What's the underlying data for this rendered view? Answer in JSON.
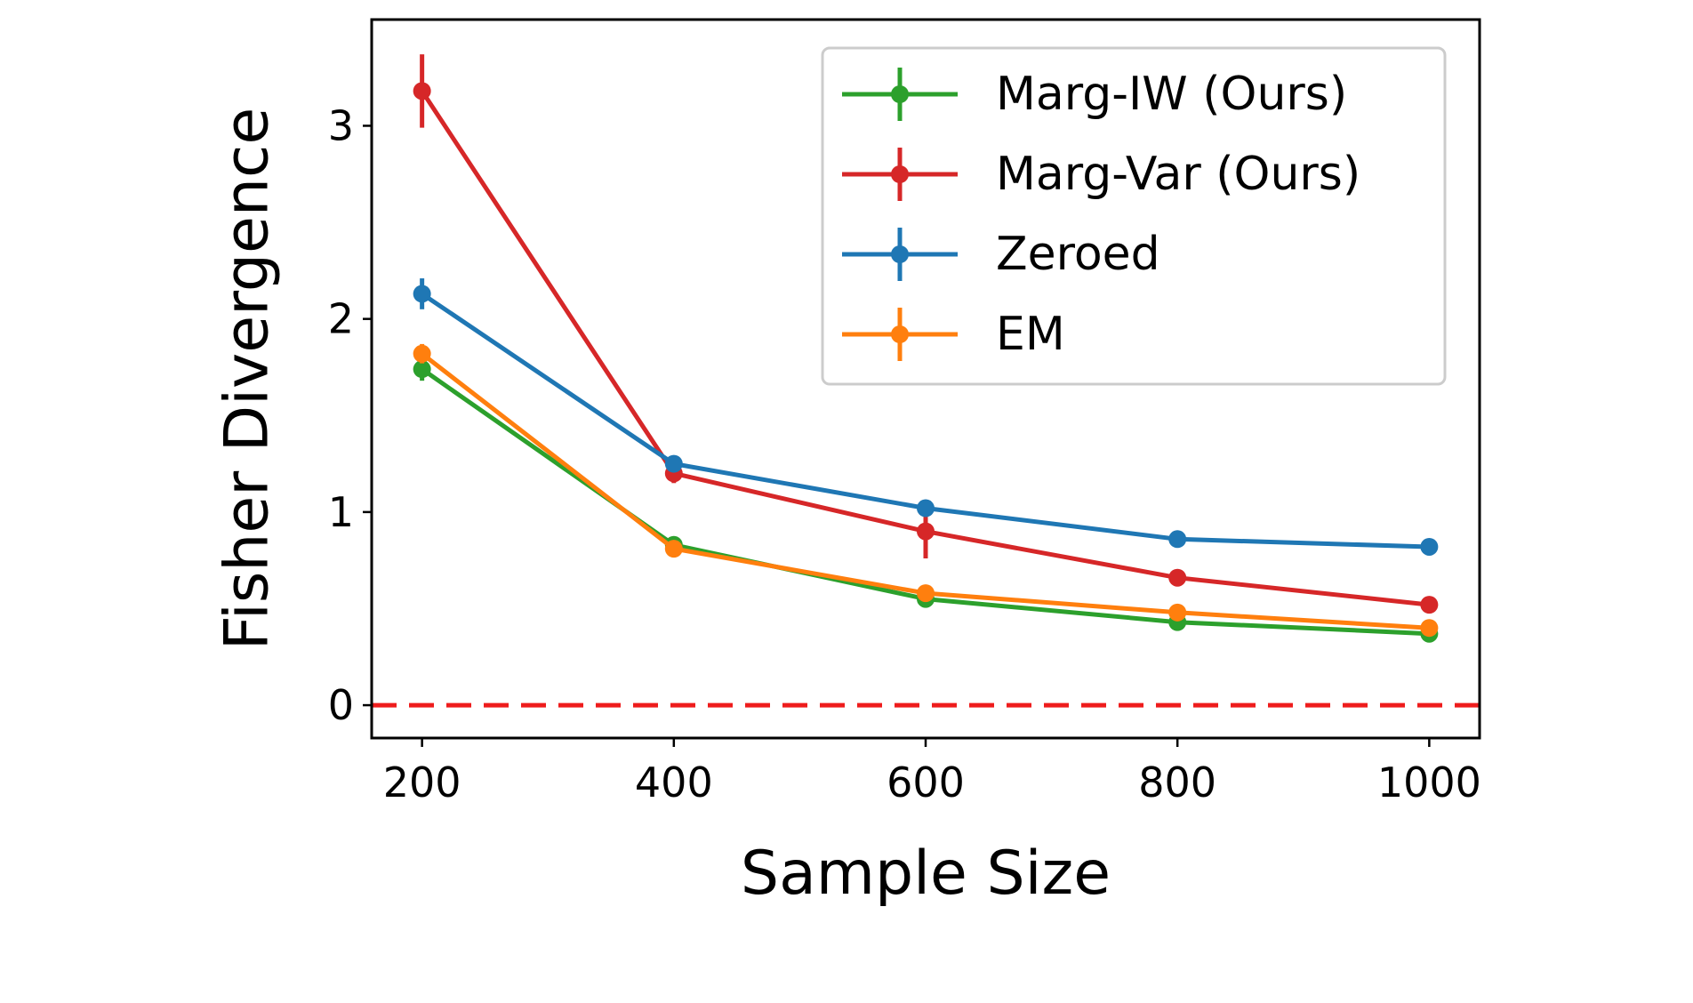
{
  "chart_data": {
    "type": "line",
    "title": "",
    "xlabel": "Sample Size",
    "ylabel": "Fisher Divergence",
    "x": [
      200,
      400,
      600,
      800,
      1000
    ],
    "xlim": [
      160,
      1040
    ],
    "ylim": [
      -0.17,
      3.55
    ],
    "xticks": [
      200,
      400,
      600,
      800,
      1000
    ],
    "yticks": [
      0,
      1,
      2,
      3
    ],
    "grid": false,
    "legend_position": "top-right",
    "reference_line": {
      "y": 0,
      "style": "dashed",
      "color": "#ee1c1c"
    },
    "series": [
      {
        "name": "Marg-IW (Ours)",
        "color": "#2ca02c",
        "values": [
          1.74,
          0.83,
          0.55,
          0.43,
          0.37
        ],
        "errors": [
          0.06,
          0.02,
          0.02,
          0.02,
          0.02
        ]
      },
      {
        "name": "Marg-Var (Ours)",
        "color": "#d62728",
        "values": [
          3.18,
          1.2,
          0.9,
          0.66,
          0.52
        ],
        "errors": [
          0.19,
          0.05,
          0.14,
          0.02,
          0.02
        ]
      },
      {
        "name": "Zeroed",
        "color": "#1f77b4",
        "values": [
          2.13,
          1.25,
          1.02,
          0.86,
          0.82
        ],
        "errors": [
          0.08,
          0.03,
          0.02,
          0.02,
          0.02
        ]
      },
      {
        "name": "EM",
        "color": "#ff7f0e",
        "values": [
          1.82,
          0.81,
          0.58,
          0.48,
          0.4
        ],
        "errors": [
          0.05,
          0.02,
          0.02,
          0.02,
          0.02
        ]
      }
    ]
  }
}
